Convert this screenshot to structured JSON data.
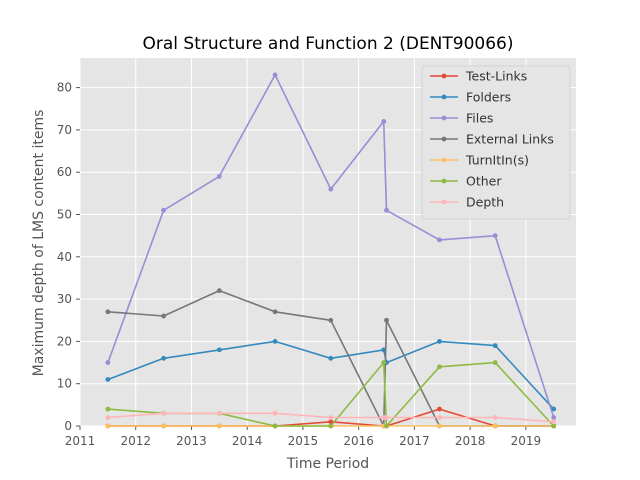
{
  "chart_data": {
    "type": "line",
    "title": "Oral Structure and Function 2 (DENT90066)",
    "xlabel": "Time Period",
    "ylabel": "Maximum depth of LMS content items",
    "xlim": [
      2011,
      2019.9
    ],
    "ylim": [
      0,
      87
    ],
    "xticks": [
      2011,
      2012,
      2013,
      2014,
      2015,
      2016,
      2017,
      2018,
      2019
    ],
    "yticks": [
      0,
      10,
      20,
      30,
      40,
      50,
      60,
      70,
      80
    ],
    "grid": true,
    "legend_position": "top-right",
    "x": [
      2011.5,
      2012.5,
      2013.5,
      2014.5,
      2015.5,
      2016.45,
      2016.5,
      2017.45,
      2018.45,
      2019.5
    ],
    "series": [
      {
        "name": "Test-Links",
        "color": "#E24A33",
        "values": [
          0,
          0,
          0,
          0,
          1,
          0,
          0,
          4,
          0,
          0
        ]
      },
      {
        "name": "Folders",
        "color": "#348ABD",
        "values": [
          11,
          16,
          18,
          20,
          16,
          18,
          15,
          20,
          19,
          4
        ]
      },
      {
        "name": "Files",
        "color": "#988ED5",
        "values": [
          15,
          51,
          59,
          83,
          56,
          72,
          51,
          44,
          45,
          2
        ]
      },
      {
        "name": "External Links",
        "color": "#777777",
        "values": [
          27,
          26,
          32,
          27,
          25,
          0,
          25,
          0,
          0,
          0
        ]
      },
      {
        "name": "TurnItIn(s)",
        "color": "#FBC15E",
        "values": [
          0,
          0,
          0,
          0,
          0,
          0,
          0,
          0,
          0,
          0
        ]
      },
      {
        "name": "Other",
        "color": "#8EBA42",
        "values": [
          4,
          3,
          3,
          0,
          0,
          15,
          0,
          14,
          15,
          0
        ]
      },
      {
        "name": "Depth",
        "color": "#FFB5B8",
        "values": [
          2,
          3,
          3,
          3,
          2,
          2,
          2,
          2,
          2,
          1
        ]
      }
    ]
  }
}
